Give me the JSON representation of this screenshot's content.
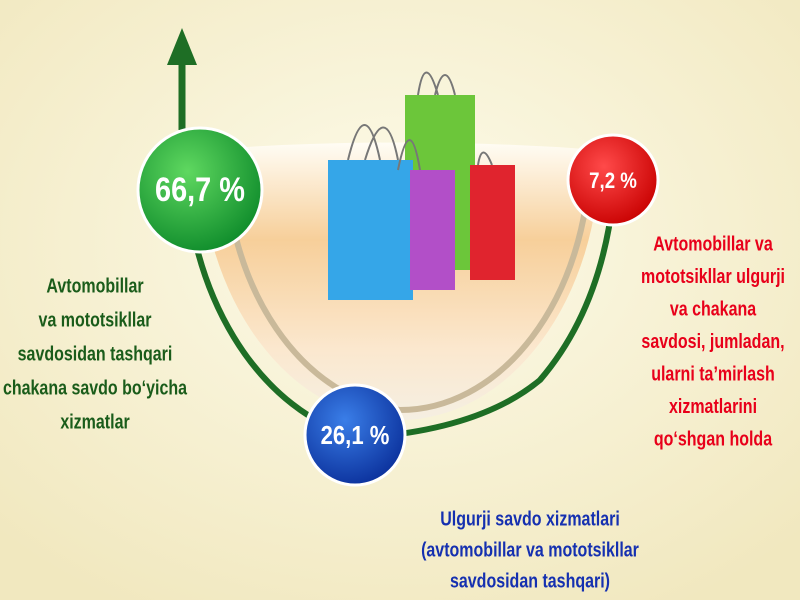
{
  "items": [
    {
      "value": "66,7 %",
      "label": [
        "Avtomobillar",
        "va mototsikllar",
        "savdosidan  tashqari",
        "chakana  savdo  bo‘yicha",
        "xizmatlar"
      ]
    },
    {
      "value": "26,1 %",
      "label": [
        "Ulgurji  savdo  xizmatlari",
        "(avtomobillar  va  mototsikllar",
        "savdosidan  tashqari)"
      ]
    },
    {
      "value": "7,2 %",
      "label": [
        "Avtomobillar  va",
        "mototsikllar  ulgurji",
        "va  chakana",
        "savdosi,  jumladan,",
        "ularni  ta’mirlash",
        "xizmatlarini",
        "qo‘shgan  holda"
      ]
    }
  ]
}
